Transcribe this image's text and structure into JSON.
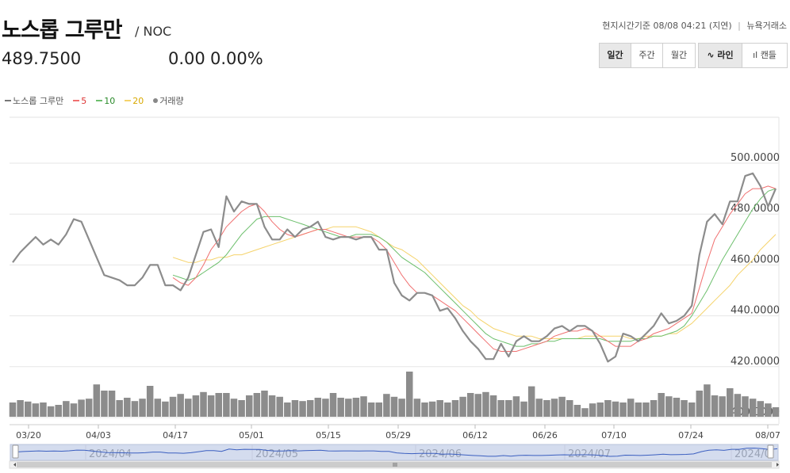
{
  "header": {
    "name": "노스롭 그루만",
    "ticker": "/ NOC",
    "price": "489.7500",
    "change": "0.00",
    "change_pct": "0.00%",
    "time_label": "현지시간기준 08/08 04:21 (지연)",
    "exchange": "뉴욕거래소"
  },
  "period_buttons": [
    "일간",
    "주간",
    "월간"
  ],
  "chart_buttons": [
    "라인",
    "캔들"
  ],
  "legend": {
    "price": "노스롭 그루만",
    "ma5": "5",
    "ma10": "10",
    "ma20": "20",
    "volume": "거래량"
  },
  "colors": {
    "price": "#8c8c8c",
    "ma5": "#f07070",
    "ma10": "#6cbf6c",
    "ma20": "#f5d36b",
    "volume": "#8c8c8c",
    "navigator": "#3b5fc0"
  },
  "chart_data": {
    "type": "line",
    "y_ticks": [
      "500.0000",
      "480.0000",
      "460.0000",
      "440.0000",
      "420.0000",
      "400.0000"
    ],
    "ylim": [
      400,
      500
    ],
    "x_ticks": [
      "03/20",
      "04/03",
      "04/17",
      "05/01",
      "05/15",
      "05/29",
      "06/12",
      "06/26",
      "07/10",
      "07/24",
      "08/07"
    ],
    "navigator_labels": [
      "2024/04",
      "2024/05",
      "2024/06",
      "2024/07",
      "2024/0"
    ],
    "series": [
      {
        "name": "노스롭 그루만",
        "values": [
          461,
          465,
          468,
          471,
          468,
          470,
          468,
          472,
          478,
          477,
          470,
          463,
          456,
          455,
          454,
          452,
          452,
          455,
          460,
          460,
          452,
          452,
          450,
          455,
          464,
          473,
          474,
          467,
          487,
          481,
          485,
          484,
          484,
          475,
          470,
          470,
          474,
          471,
          474,
          475,
          477,
          471,
          470,
          471,
          471,
          470,
          471,
          471,
          466,
          466,
          453,
          448,
          446,
          449,
          449,
          448,
          442,
          443,
          439,
          434,
          430,
          427,
          423,
          423,
          429,
          424,
          430,
          432,
          430,
          430,
          432,
          435,
          436,
          434,
          436,
          436,
          434,
          429,
          422,
          424,
          433,
          432,
          430,
          433,
          436,
          441,
          437,
          438,
          440,
          444,
          464,
          477,
          480,
          476,
          485,
          485,
          495,
          496,
          491,
          483,
          490
        ]
      },
      {
        "name": "5",
        "values": [
          null,
          null,
          null,
          null,
          null,
          null,
          null,
          null,
          null,
          null,
          null,
          null,
          null,
          null,
          null,
          null,
          null,
          null,
          null,
          null,
          null,
          455,
          453,
          452,
          455,
          460,
          466,
          470,
          475,
          478,
          481,
          483,
          484,
          481,
          477,
          474,
          472,
          471,
          472,
          473,
          474,
          474,
          473,
          472,
          471,
          471,
          471,
          471,
          469,
          466,
          461,
          456,
          452,
          449,
          449,
          448,
          446,
          444,
          442,
          439,
          436,
          433,
          430,
          427,
          426,
          426,
          426,
          427,
          428,
          429,
          430,
          432,
          433,
          434,
          434,
          435,
          434,
          432,
          430,
          428,
          428,
          428,
          430,
          431,
          433,
          434,
          435,
          437,
          439,
          441,
          451,
          461,
          470,
          475,
          480,
          484,
          488,
          490,
          490,
          491,
          490
        ]
      },
      {
        "name": "10",
        "values": [
          null,
          null,
          null,
          null,
          null,
          null,
          null,
          null,
          null,
          null,
          null,
          null,
          null,
          null,
          null,
          null,
          null,
          null,
          null,
          null,
          null,
          456,
          455,
          454,
          455,
          457,
          459,
          461,
          464,
          468,
          472,
          475,
          478,
          479,
          479,
          479,
          478,
          477,
          476,
          475,
          474,
          473,
          472,
          471,
          471,
          472,
          472,
          472,
          471,
          469,
          466,
          463,
          461,
          459,
          457,
          454,
          451,
          448,
          445,
          442,
          439,
          436,
          433,
          431,
          430,
          429,
          428,
          428,
          429,
          429,
          430,
          430,
          431,
          431,
          431,
          431,
          431,
          431,
          430,
          430,
          430,
          430,
          431,
          431,
          432,
          432,
          433,
          434,
          436,
          440,
          445,
          450,
          456,
          462,
          467,
          472,
          477,
          482,
          486,
          489,
          490
        ]
      },
      {
        "name": "20",
        "values": [
          null,
          null,
          null,
          null,
          null,
          null,
          null,
          null,
          null,
          null,
          null,
          null,
          null,
          null,
          null,
          null,
          null,
          null,
          null,
          null,
          null,
          463,
          462,
          461,
          461,
          462,
          462,
          463,
          463,
          464,
          464,
          465,
          466,
          467,
          468,
          469,
          470,
          471,
          472,
          473,
          474,
          474,
          475,
          475,
          475,
          475,
          474,
          473,
          471,
          469,
          467,
          466,
          464,
          462,
          459,
          456,
          453,
          450,
          447,
          444,
          442,
          439,
          437,
          435,
          434,
          433,
          432,
          432,
          432,
          431,
          431,
          431,
          431,
          431,
          431,
          432,
          432,
          432,
          432,
          432,
          432,
          431,
          431,
          432,
          432,
          432,
          433,
          433,
          435,
          437,
          440,
          443,
          446,
          449,
          452,
          456,
          459,
          462,
          466,
          469,
          472
        ]
      }
    ],
    "volume": [
      0.3,
      0.35,
      0.32,
      0.28,
      0.3,
      0.22,
      0.25,
      0.33,
      0.28,
      0.36,
      0.38,
      0.68,
      0.55,
      0.55,
      0.35,
      0.4,
      0.33,
      0.38,
      0.65,
      0.38,
      0.32,
      0.42,
      0.48,
      0.38,
      0.45,
      0.52,
      0.45,
      0.5,
      0.5,
      0.38,
      0.35,
      0.45,
      0.5,
      0.55,
      0.45,
      0.42,
      0.3,
      0.35,
      0.33,
      0.35,
      0.4,
      0.38,
      0.5,
      0.4,
      0.38,
      0.4,
      0.43,
      0.3,
      0.3,
      0.48,
      0.42,
      0.38,
      0.95,
      0.38,
      0.3,
      0.32,
      0.35,
      0.3,
      0.35,
      0.42,
      0.5,
      0.48,
      0.52,
      0.45,
      0.35,
      0.35,
      0.43,
      0.32,
      0.64,
      0.38,
      0.35,
      0.38,
      0.42,
      0.35,
      0.25,
      0.18,
      0.28,
      0.3,
      0.35,
      0.32,
      0.3,
      0.38,
      0.3,
      0.3,
      0.35,
      0.5,
      0.43,
      0.4,
      0.35,
      0.3,
      0.55,
      0.68,
      0.45,
      0.43,
      0.6,
      0.48,
      0.43,
      0.38,
      0.33,
      0.28,
      0.2
    ]
  }
}
